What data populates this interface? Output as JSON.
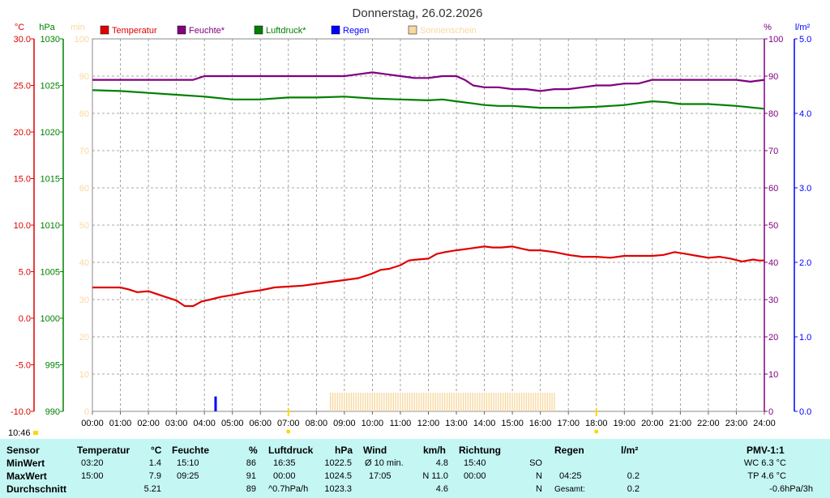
{
  "chart_data": {
    "type": "line",
    "title": "Donnerstag, 26.02.2026",
    "x_ticks": [
      "00:00",
      "01:00",
      "02:00",
      "03:00",
      "04:00",
      "05:00",
      "06:00",
      "07:00",
      "08:00",
      "09:00",
      "10:00",
      "11:00",
      "12:00",
      "13:00",
      "14:00",
      "15:00",
      "16:00",
      "17:00",
      "18:00",
      "19:00",
      "20:00",
      "21:00",
      "22:00",
      "23:00",
      "24:00"
    ],
    "xlim": [
      0,
      24
    ],
    "grid": true,
    "legend": {
      "position": "top",
      "entries": [
        {
          "name": "Temperatur",
          "color": "#e00000"
        },
        {
          "name": "Feuchte*",
          "color": "#800080"
        },
        {
          "name": "Luftdruck*",
          "color": "#008000"
        },
        {
          "name": "Regen",
          "color": "#0000ff"
        },
        {
          "name": "Sonnenschein",
          "color": "#f8d8a0"
        }
      ]
    },
    "axes": {
      "temp": {
        "unit": "°C",
        "color": "#e00000",
        "ylim": [
          -10,
          30
        ],
        "ticks": [
          "30.0",
          "25.0",
          "20.0",
          "15.0",
          "10.0",
          "5.0",
          "0.0",
          "-5.0",
          "-10.0"
        ]
      },
      "pressure": {
        "unit": "hPa",
        "color": "#008000",
        "ylim": [
          990,
          1030
        ],
        "ticks": [
          "1030",
          "1025",
          "1020",
          "1015",
          "1010",
          "1005",
          "1000",
          "995",
          "990"
        ]
      },
      "sun": {
        "unit": "min",
        "color": "#f8d8a0",
        "ylim": [
          0,
          100
        ],
        "ticks": [
          "100",
          "90",
          "80",
          "70",
          "60",
          "50",
          "40",
          "30",
          "20",
          "10",
          "0"
        ]
      },
      "humidity": {
        "unit": "%",
        "color": "#800080",
        "ylim": [
          0,
          100
        ],
        "ticks": [
          "100",
          "90",
          "80",
          "70",
          "60",
          "50",
          "40",
          "30",
          "20",
          "10",
          "0"
        ]
      },
      "rain": {
        "unit": "l/m²",
        "color": "#0000ff",
        "ylim": [
          0,
          5
        ],
        "ticks": [
          "5.0",
          "4.0",
          "3.0",
          "2.0",
          "1.0",
          "0.0"
        ]
      }
    },
    "series": [
      {
        "name": "Temperatur",
        "axis": "temp",
        "color": "#e00000",
        "x": [
          0,
          0.5,
          1,
          1.3,
          1.6,
          2,
          2.3,
          2.6,
          3,
          3.3,
          3.6,
          3.9,
          4.2,
          4.6,
          5,
          5.5,
          6,
          6.5,
          7,
          7.5,
          8,
          8.5,
          9,
          9.5,
          10,
          10.3,
          10.6,
          11,
          11.3,
          11.6,
          12,
          12.3,
          12.6,
          13,
          13.5,
          14,
          14.3,
          14.6,
          15,
          15.3,
          15.6,
          16,
          16.5,
          17,
          17.5,
          18,
          18.5,
          19,
          19.5,
          20,
          20.4,
          20.8,
          21.2,
          21.6,
          22,
          22.4,
          22.8,
          23.2,
          23.6,
          23.8,
          24
        ],
        "y": [
          3.3,
          3.3,
          3.3,
          3.1,
          2.8,
          2.9,
          2.6,
          2.3,
          1.9,
          1.3,
          1.3,
          1.8,
          2.0,
          2.3,
          2.5,
          2.8,
          3.0,
          3.3,
          3.4,
          3.5,
          3.7,
          3.9,
          4.1,
          4.3,
          4.8,
          5.2,
          5.3,
          5.7,
          6.2,
          6.3,
          6.4,
          6.9,
          7.1,
          7.3,
          7.5,
          7.7,
          7.6,
          7.6,
          7.7,
          7.5,
          7.3,
          7.3,
          7.1,
          6.8,
          6.6,
          6.6,
          6.5,
          6.7,
          6.7,
          6.7,
          6.8,
          7.1,
          6.9,
          6.7,
          6.5,
          6.6,
          6.4,
          6.1,
          6.3,
          6.2,
          6.2
        ]
      },
      {
        "name": "Feuchte*",
        "axis": "humidity",
        "color": "#800080",
        "x": [
          0,
          1,
          2,
          3,
          3.6,
          4,
          4.5,
          5,
          6,
          7,
          8,
          9,
          9.5,
          10,
          10.5,
          11,
          11.5,
          12,
          12.5,
          13,
          13.3,
          13.6,
          14,
          14.5,
          15,
          15.5,
          16,
          16.5,
          17,
          17.5,
          18,
          18.5,
          19,
          19.5,
          20,
          21,
          22,
          22.5,
          23,
          23.5,
          24
        ],
        "y": [
          89,
          89,
          89,
          89,
          89,
          90,
          90,
          90,
          90,
          90,
          90,
          90,
          90.5,
          91,
          90.5,
          90,
          89.5,
          89.5,
          90,
          90,
          89,
          87.5,
          87,
          87,
          86.5,
          86.5,
          86,
          86.5,
          86.5,
          87,
          87.5,
          87.5,
          88,
          88,
          89,
          89,
          89,
          89,
          89,
          88.5,
          89
        ]
      },
      {
        "name": "Luftdruck*",
        "axis": "pressure",
        "color": "#008000",
        "x": [
          0,
          1,
          2,
          3,
          4,
          5,
          6,
          7,
          8,
          9,
          10,
          11,
          12,
          12.5,
          13,
          13.5,
          14,
          14.5,
          15,
          16,
          17,
          18,
          19,
          19.5,
          20,
          20.5,
          21,
          22,
          23,
          24
        ],
        "y": [
          1024.5,
          1024.4,
          1024.2,
          1024.0,
          1023.8,
          1023.5,
          1023.5,
          1023.7,
          1023.7,
          1023.8,
          1023.6,
          1023.5,
          1023.4,
          1023.5,
          1023.3,
          1023.1,
          1022.9,
          1022.8,
          1022.8,
          1022.6,
          1022.6,
          1022.7,
          1022.9,
          1023.1,
          1023.3,
          1023.2,
          1023.0,
          1023.0,
          1022.8,
          1022.5
        ]
      },
      {
        "name": "Regen",
        "axis": "rain",
        "color": "#0000ff",
        "bars": [
          {
            "x": 4.4,
            "value": 0.2
          }
        ]
      },
      {
        "name": "Sonnenschein",
        "axis": "sun",
        "color": "#f8d8a0",
        "bars_from": 8.5,
        "bars_to": 16.5,
        "value": 5
      }
    ],
    "markers": {
      "sunrise": "07:00",
      "sunset": "18:00",
      "now": "10:46"
    }
  },
  "table": {
    "header": {
      "sensor": "Sensor",
      "temp": "Temperatur",
      "temp_unit": "°C",
      "hum": "Feuchte",
      "hum_unit": "%",
      "press": "Luftdruck",
      "press_unit": "hPa",
      "wind": "Wind",
      "wind_unit": "km/h",
      "dir": "Richtung",
      "rain": "Regen",
      "rain_unit": "l/m²",
      "pmv": "PMV-1:1"
    },
    "min": {
      "label": "MinWert",
      "temp_time": "03:20",
      "temp": "1.4",
      "hum_time": "15:10",
      "hum": "86",
      "press_time": "16:35",
      "press": "1022.5",
      "wind_label": "Ø 10 min.",
      "wind": "4.8",
      "dir_time": "15:40",
      "dir": "SO",
      "rain_label": "",
      "rain": "",
      "pmv": "WC 6.3 °C"
    },
    "max": {
      "label": "MaxWert",
      "temp_time": "15:00",
      "temp": "7.9",
      "hum_time": "09:25",
      "hum": "91",
      "press_time": "00:00",
      "press": "1024.5",
      "wind_label": "17:05",
      "wind": "N 11.0",
      "dir_time": "00:00",
      "dir": "N",
      "rain_label": "04:25",
      "rain": "0.2",
      "pmv": "TP 4.6 °C"
    },
    "avg": {
      "label": "Durchschnitt",
      "temp": "5.21",
      "hum": "89",
      "press_label": "^0.7hPa/h",
      "press": "1023.3",
      "wind": "4.6",
      "dir": "N",
      "rain_label": "Gesamt:",
      "rain": "0.2",
      "pmv": "-0.6hPa/3h"
    }
  }
}
